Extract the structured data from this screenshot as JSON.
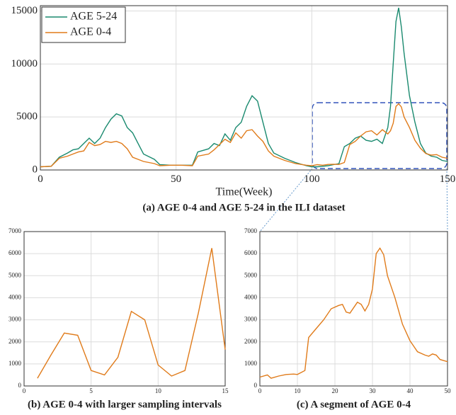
{
  "chart_data": [
    {
      "type": "line",
      "xlabel": "Time(Week)",
      "caption": "(a) AGE 0-4 and AGE 5-24 in the ILI dataset",
      "x": [
        0,
        4,
        7,
        10,
        12,
        14,
        16,
        18,
        20,
        22,
        24,
        26,
        28,
        30,
        32,
        34,
        36,
        38,
        42,
        44,
        48,
        52,
        56,
        58,
        62,
        64,
        66,
        68,
        70,
        72,
        74,
        76,
        78,
        80,
        82,
        84,
        86,
        90,
        94,
        98,
        100,
        102,
        104,
        106,
        108,
        110,
        112,
        114,
        116,
        118,
        120,
        122,
        124,
        126,
        128,
        129,
        130,
        131,
        132,
        133,
        134,
        136,
        138,
        140,
        142,
        144,
        146,
        148,
        150
      ],
      "series": [
        {
          "name": "AGE 5-24",
          "color": "#1a8a6f",
          "values": [
            300,
            350,
            1200,
            1600,
            1900,
            2000,
            2500,
            3000,
            2500,
            3000,
            4000,
            4800,
            5300,
            5100,
            4000,
            3500,
            2500,
            1500,
            1000,
            500,
            450,
            450,
            450,
            1700,
            2000,
            2500,
            2300,
            3400,
            2800,
            4000,
            4500,
            6000,
            7000,
            6500,
            4500,
            2500,
            1600,
            1100,
            700,
            400,
            300,
            300,
            350,
            400,
            500,
            600,
            2200,
            2500,
            3000,
            3200,
            2800,
            2700,
            2900,
            2500,
            4000,
            6000,
            10000,
            14000,
            15300,
            13500,
            11000,
            7000,
            4500,
            2500,
            1600,
            1300,
            1200,
            900,
            800
          ]
        },
        {
          "name": "AGE 0-4",
          "color": "#e07b1a",
          "values": [
            300,
            350,
            1100,
            1300,
            1500,
            1700,
            1800,
            2600,
            2300,
            2400,
            2700,
            2600,
            2700,
            2500,
            2000,
            1200,
            1000,
            800,
            600,
            400,
            450,
            450,
            400,
            1300,
            1500,
            1900,
            2400,
            2900,
            2600,
            3500,
            3000,
            3700,
            3800,
            3200,
            2700,
            1800,
            1300,
            900,
            600,
            450,
            400,
            500,
            450,
            520,
            540,
            520,
            700,
            2400,
            2700,
            3200,
            3600,
            3700,
            3300,
            3800,
            3400,
            3700,
            4400,
            6000,
            6250,
            5950,
            5000,
            4000,
            2800,
            2050,
            1550,
            1400,
            1450,
            1200,
            1100
          ]
        }
      ],
      "xlim": [
        0,
        150
      ],
      "xticks": [
        0,
        50,
        100,
        150
      ],
      "ylim": [
        0,
        15500
      ],
      "yticks": [
        0,
        5000,
        10000,
        15000
      ],
      "grid": true,
      "legend": "upper left"
    },
    {
      "type": "line",
      "caption": "(b) AGE 0-4 with larger sampling intervals",
      "x": [
        1,
        2,
        3,
        4,
        5,
        6,
        7,
        8,
        9,
        10,
        11,
        12,
        13,
        14,
        15
      ],
      "values": [
        350,
        1400,
        2400,
        2300,
        700,
        500,
        1300,
        3380,
        3000,
        950,
        450,
        700,
        3300,
        6250,
        1650
      ],
      "color": "#e07b1a",
      "xlim": [
        0,
        15
      ],
      "xticks": [
        0,
        5,
        10,
        15
      ],
      "ylim": [
        0,
        7000
      ],
      "yticks": [
        0,
        1000,
        2000,
        3000,
        4000,
        5000,
        6000,
        7000
      ],
      "grid": true
    },
    {
      "type": "line",
      "caption": "(c) A segment of AGE 0-4",
      "x": [
        0,
        2,
        3,
        5,
        7,
        9,
        10,
        12,
        13,
        15,
        17,
        19,
        21,
        22,
        23,
        24,
        26,
        27,
        28,
        29,
        30,
        31,
        32,
        33,
        34,
        36,
        38,
        40,
        41,
        42,
        44,
        45,
        46,
        47,
        48,
        50
      ],
      "values": [
        400,
        500,
        350,
        450,
        520,
        540,
        520,
        700,
        2200,
        2600,
        3000,
        3500,
        3650,
        3700,
        3350,
        3300,
        3800,
        3700,
        3400,
        3700,
        4400,
        6000,
        6250,
        5950,
        5000,
        4000,
        2800,
        2050,
        1800,
        1550,
        1400,
        1350,
        1450,
        1400,
        1200,
        1100
      ],
      "color": "#e07b1a",
      "xlim": [
        0,
        50
      ],
      "xticks": [
        0,
        10,
        20,
        30,
        40,
        50
      ],
      "ylim": [
        0,
        7000
      ],
      "yticks": [
        0,
        1000,
        2000,
        3000,
        4000,
        5000,
        6000,
        7000
      ],
      "grid": true
    }
  ]
}
